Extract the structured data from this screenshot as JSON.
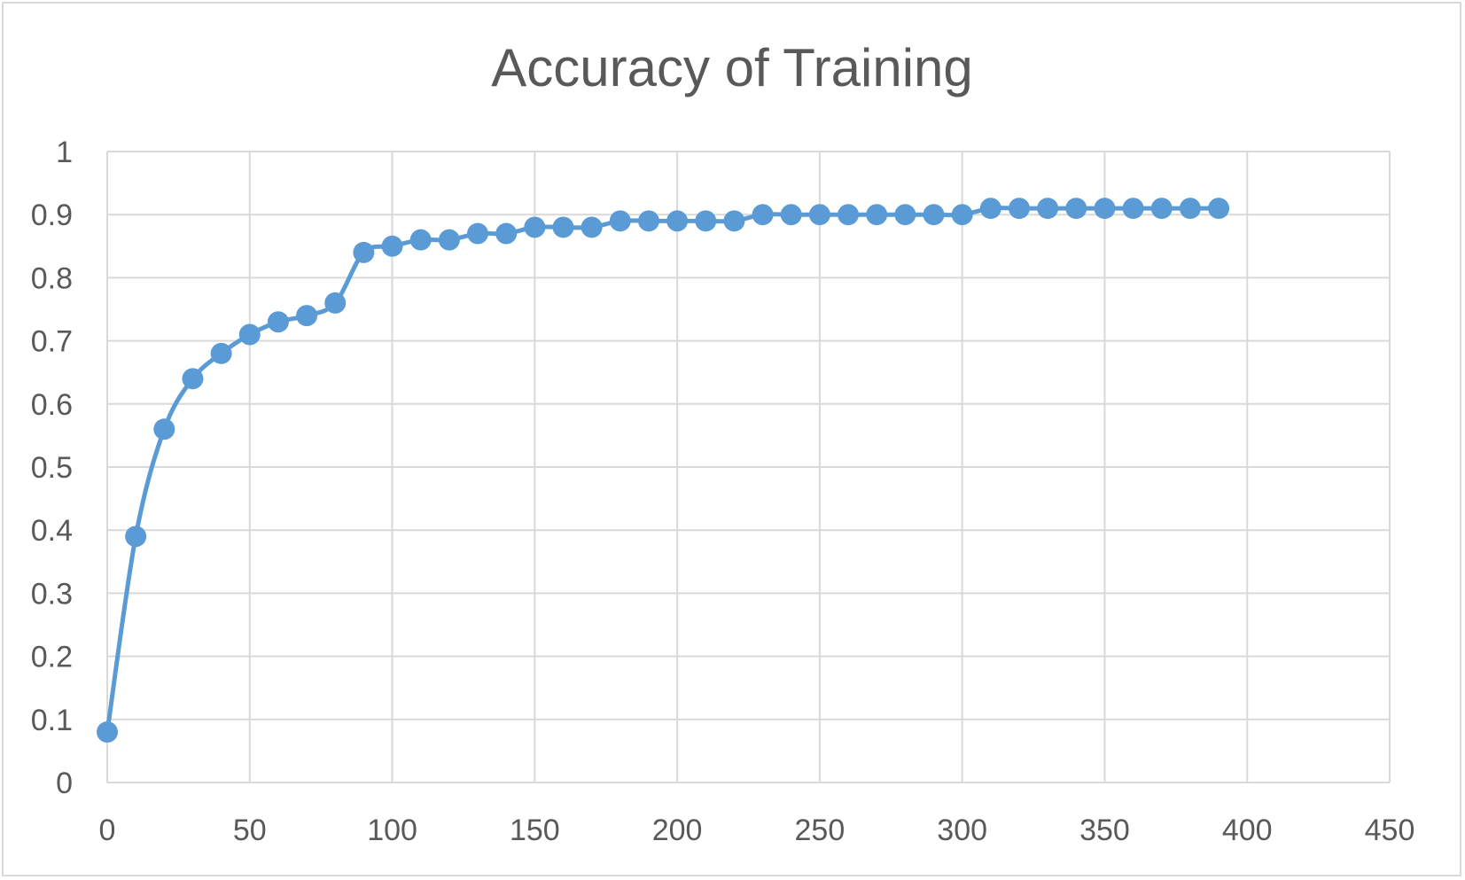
{
  "chart_data": {
    "type": "scatter",
    "title": "Accuracy of Training",
    "xlabel": "",
    "ylabel": "",
    "xlim": [
      0,
      450
    ],
    "ylim": [
      0,
      1
    ],
    "x_ticks": [
      "0",
      "50",
      "100",
      "150",
      "200",
      "250",
      "300",
      "350",
      "400",
      "450"
    ],
    "y_ticks": [
      "0",
      "0.1",
      "0.2",
      "0.3",
      "0.4",
      "0.5",
      "0.6",
      "0.7",
      "0.8",
      "0.9",
      "1"
    ],
    "grid": true,
    "legend": "none",
    "line_style": "smoothed-line-with-markers",
    "series": [
      {
        "color": "#5b9bd5",
        "x": [
          0,
          10,
          20,
          30,
          40,
          50,
          60,
          70,
          80,
          90,
          100,
          110,
          120,
          130,
          140,
          150,
          160,
          170,
          180,
          190,
          200,
          210,
          220,
          230,
          240,
          250,
          260,
          270,
          280,
          290,
          300,
          310,
          320,
          330,
          340,
          350,
          360,
          370,
          380,
          390
        ],
        "y": [
          0.08,
          0.39,
          0.56,
          0.64,
          0.68,
          0.71,
          0.73,
          0.74,
          0.76,
          0.84,
          0.85,
          0.86,
          0.86,
          0.87,
          0.87,
          0.88,
          0.88,
          0.88,
          0.89,
          0.89,
          0.89,
          0.89,
          0.89,
          0.9,
          0.9,
          0.9,
          0.9,
          0.9,
          0.9,
          0.9,
          0.9,
          0.91,
          0.91,
          0.91,
          0.91,
          0.91,
          0.91,
          0.91,
          0.91,
          0.91
        ]
      }
    ]
  }
}
